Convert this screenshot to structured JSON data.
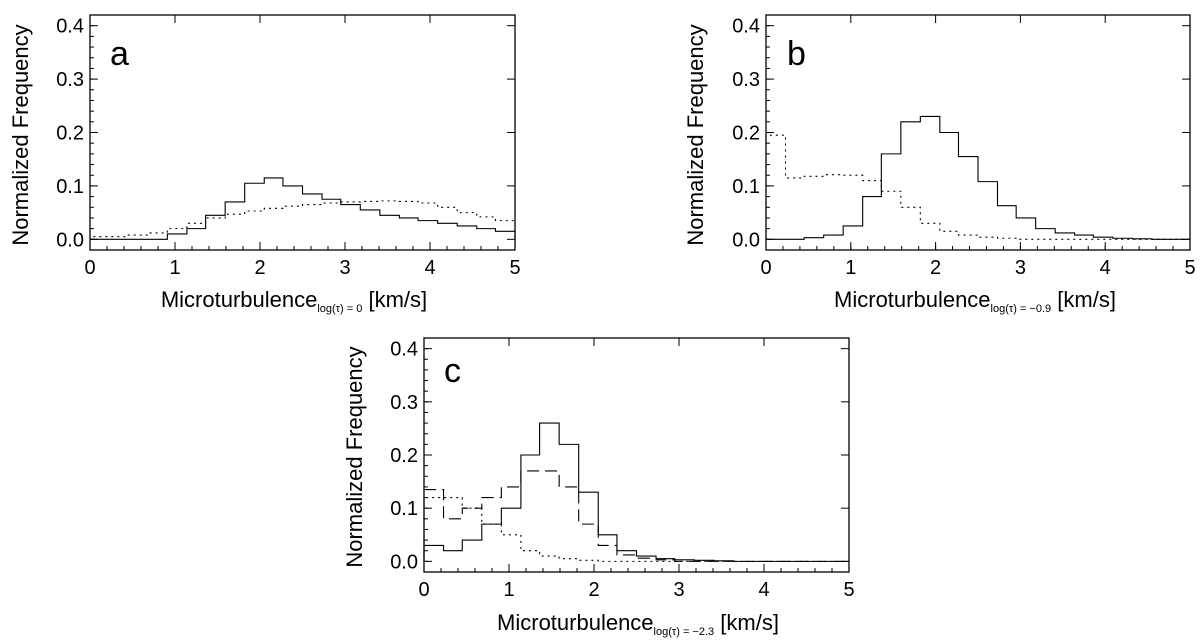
{
  "chart_data": [
    {
      "type": "histogram",
      "panel_label": "a",
      "xlabel": "Microturbulence",
      "xlabel_subscript": "log(τ) = 0",
      "xlabel_unit": "[km/s]",
      "ylabel": "Normalized Frequency",
      "xlim": [
        0,
        5
      ],
      "ylim": [
        -0.02,
        0.42
      ],
      "x_ticks": [
        "0",
        "1",
        "2",
        "3",
        "4",
        "5"
      ],
      "y_ticks": [
        "0.0",
        "0.1",
        "0.2",
        "0.3",
        "0.4"
      ],
      "bin_edges": [
        0,
        0.23,
        0.45,
        0.68,
        0.91,
        1.14,
        1.36,
        1.59,
        1.82,
        2.05,
        2.27,
        2.5,
        2.73,
        2.95,
        3.18,
        3.41,
        3.64,
        3.86,
        4.09,
        4.32,
        4.55,
        4.77,
        5.0
      ],
      "series": [
        {
          "name": "solid",
          "style": "solid",
          "color": "#000000",
          "values": [
            0.0,
            0.0,
            0.0,
            0.0,
            0.01,
            0.02,
            0.045,
            0.07,
            0.105,
            0.115,
            0.1,
            0.085,
            0.075,
            0.065,
            0.055,
            0.045,
            0.04,
            0.035,
            0.03,
            0.025,
            0.02,
            0.015
          ]
        },
        {
          "name": "dotted",
          "style": "dotted",
          "color": "#000000",
          "values": [
            0.005,
            0.005,
            0.008,
            0.012,
            0.02,
            0.03,
            0.04,
            0.047,
            0.053,
            0.058,
            0.062,
            0.065,
            0.068,
            0.07,
            0.071,
            0.072,
            0.071,
            0.068,
            0.06,
            0.05,
            0.042,
            0.035
          ]
        }
      ]
    },
    {
      "type": "histogram",
      "panel_label": "b",
      "xlabel": "Microturbulence",
      "xlabel_subscript": "log(τ) = −0.9",
      "xlabel_unit": "[km/s]",
      "ylabel": "Normalized Frequency",
      "xlim": [
        0,
        5
      ],
      "ylim": [
        -0.02,
        0.42
      ],
      "x_ticks": [
        "0",
        "1",
        "2",
        "3",
        "4",
        "5"
      ],
      "y_ticks": [
        "0.0",
        "0.1",
        "0.2",
        "0.3",
        "0.4"
      ],
      "bin_edges": [
        0,
        0.23,
        0.45,
        0.68,
        0.91,
        1.14,
        1.36,
        1.59,
        1.82,
        2.05,
        2.27,
        2.5,
        2.73,
        2.95,
        3.18,
        3.41,
        3.64,
        3.86,
        4.09,
        4.32,
        4.55,
        4.77,
        5.0
      ],
      "series": [
        {
          "name": "solid",
          "style": "solid",
          "color": "#000000",
          "values": [
            0.0,
            0.0,
            0.003,
            0.008,
            0.025,
            0.08,
            0.16,
            0.22,
            0.23,
            0.2,
            0.155,
            0.108,
            0.063,
            0.04,
            0.02,
            0.012,
            0.008,
            0.004,
            0.002,
            0.001,
            0.0,
            0.0
          ]
        },
        {
          "name": "dotted",
          "style": "dotted",
          "color": "#000000",
          "values": [
            0.195,
            0.115,
            0.118,
            0.121,
            0.12,
            0.11,
            0.09,
            0.06,
            0.03,
            0.015,
            0.008,
            0.004,
            0.002,
            0.0,
            0.0,
            0.0,
            0.0,
            0.0,
            0.0,
            0.0,
            0.0,
            0.0
          ]
        }
      ]
    },
    {
      "type": "histogram",
      "panel_label": "c",
      "xlabel": "Microturbulence",
      "xlabel_subscript": "log(τ) = −2.3",
      "xlabel_unit": "[km/s]",
      "ylabel": "Normalized Frequency",
      "xlim": [
        0,
        5
      ],
      "ylim": [
        -0.02,
        0.42
      ],
      "x_ticks": [
        "0",
        "1",
        "2",
        "3",
        "4",
        "5"
      ],
      "y_ticks": [
        "0.0",
        "0.1",
        "0.2",
        "0.3",
        "0.4"
      ],
      "bin_edges": [
        0,
        0.23,
        0.45,
        0.68,
        0.91,
        1.14,
        1.36,
        1.59,
        1.82,
        2.05,
        2.27,
        2.5,
        2.73,
        2.95,
        3.18,
        3.41,
        3.64,
        3.86,
        4.09,
        4.32,
        4.55,
        4.77,
        5.0
      ],
      "series": [
        {
          "name": "solid",
          "style": "solid",
          "color": "#000000",
          "values": [
            0.03,
            0.02,
            0.04,
            0.07,
            0.1,
            0.2,
            0.26,
            0.22,
            0.13,
            0.05,
            0.02,
            0.01,
            0.005,
            0.003,
            0.002,
            0.001,
            0.0,
            0.0,
            0.0,
            0.0,
            0.0,
            0.0
          ]
        },
        {
          "name": "dashed",
          "style": "dashed",
          "color": "#000000",
          "values": [
            0.135,
            0.08,
            0.1,
            0.12,
            0.14,
            0.17,
            0.17,
            0.14,
            0.07,
            0.03,
            0.012,
            0.006,
            0.003,
            0.0,
            0.0,
            0.0,
            0.0,
            0.0,
            0.0,
            0.0,
            0.0,
            0.0
          ]
        },
        {
          "name": "dotted",
          "style": "dotted",
          "color": "#000000",
          "values": [
            0.12,
            0.12,
            0.1,
            0.07,
            0.05,
            0.02,
            0.01,
            0.005,
            0.002,
            0.0,
            0.0,
            0.0,
            0.0,
            0.0,
            0.0,
            0.0,
            0.0,
            0.0,
            0.0,
            0.0,
            0.0,
            0.0
          ]
        }
      ]
    }
  ]
}
